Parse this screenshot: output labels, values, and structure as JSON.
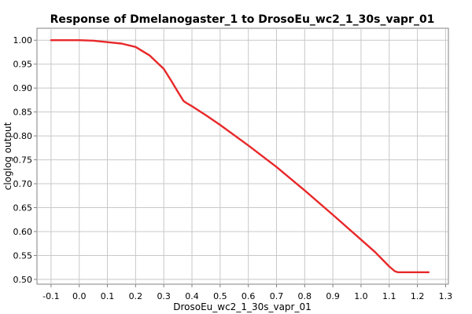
{
  "chart_data": {
    "type": "line",
    "title": "Response of Dmelanogaster_1 to DrosoEu_wc2_1_30s_vapr_01",
    "xlabel": "DrosoEu_wc2_1_30s_vapr_01",
    "ylabel": "cloglog output",
    "xlim": [
      -0.15,
      1.31
    ],
    "ylim": [
      0.49,
      1.025
    ],
    "x_ticks": [
      -0.1,
      0.0,
      0.1,
      0.2,
      0.3,
      0.4,
      0.5,
      0.6,
      0.7,
      0.8,
      0.9,
      1.0,
      1.1,
      1.2,
      1.3
    ],
    "x_tick_labels": [
      "-0.1",
      "0.0",
      "0.1",
      "0.2",
      "0.3",
      "0.4",
      "0.5",
      "0.6",
      "0.7",
      "0.8",
      "0.9",
      "1.0",
      "1.1",
      "1.2",
      "1.3"
    ],
    "y_ticks": [
      0.5,
      0.55,
      0.6,
      0.65,
      0.7,
      0.75,
      0.8,
      0.85,
      0.9,
      0.95,
      1.0
    ],
    "y_tick_labels": [
      "0.50",
      "0.55",
      "0.60",
      "0.65",
      "0.70",
      "0.75",
      "0.80",
      "0.85",
      "0.90",
      "0.95",
      "1.00"
    ],
    "grid": true,
    "series": [
      {
        "color": "#e8282a",
        "x": [
          -0.1,
          0.0,
          0.05,
          0.1,
          0.15,
          0.2,
          0.25,
          0.3,
          0.33,
          0.35,
          0.37,
          0.38,
          0.4,
          0.45,
          0.5,
          0.6,
          0.7,
          0.8,
          0.9,
          1.0,
          1.05,
          1.1,
          1.12,
          1.13,
          1.2,
          1.24
        ],
        "y": [
          1.0,
          1.0,
          0.999,
          0.996,
          0.993,
          0.986,
          0.968,
          0.94,
          0.912,
          0.892,
          0.873,
          0.869,
          0.862,
          0.843,
          0.823,
          0.78,
          0.735,
          0.686,
          0.635,
          0.583,
          0.557,
          0.527,
          0.517,
          0.515,
          0.515,
          0.515
        ]
      }
    ]
  }
}
